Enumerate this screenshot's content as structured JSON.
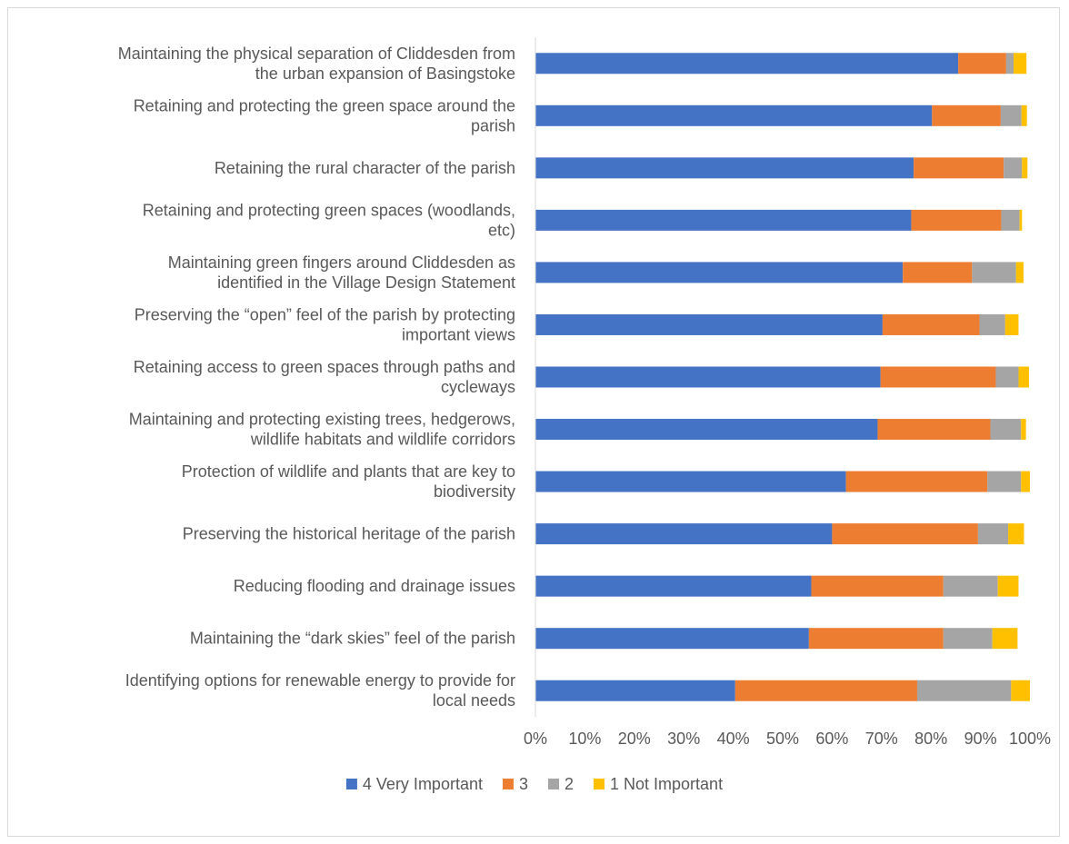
{
  "chart_data": {
    "type": "bar",
    "orientation": "horizontal",
    "stacked": "percent",
    "title": "",
    "xlabel": "",
    "ylabel": "",
    "xlim": [
      0,
      100
    ],
    "x_ticks": [
      "0%",
      "10%",
      "20%",
      "30%",
      "40%",
      "50%",
      "60%",
      "70%",
      "80%",
      "90%",
      "100%"
    ],
    "grid": "vertical axis line only",
    "legend_position": "bottom",
    "categories": [
      [
        "Maintaining the physical separation of Cliddesden from",
        "the urban expansion of Basingstoke"
      ],
      [
        "Retaining and protecting the green space around the",
        "parish"
      ],
      [
        "Retaining the rural character of the parish"
      ],
      [
        "Retaining and protecting green spaces (woodlands,",
        "etc)"
      ],
      [
        "Maintaining green fingers around Cliddesden as",
        "identified in the Village Design Statement"
      ],
      [
        "Preserving the “open” feel of the parish by protecting",
        "important views"
      ],
      [
        "Retaining access to green spaces through paths and",
        "cycleways"
      ],
      [
        "Maintaining and protecting existing trees, hedgerows,",
        "wildlife habitats and wildlife corridors"
      ],
      [
        "Protection of wildlife and plants that are key to",
        "biodiversity"
      ],
      [
        "Preserving the historical heritage of the parish"
      ],
      [
        "Reducing flooding and drainage issues"
      ],
      [
        "Maintaining the “dark skies” feel of the parish"
      ],
      [
        "Identifying options for renewable energy to provide for",
        "local needs"
      ]
    ],
    "series": [
      {
        "name": "4 Very Important",
        "color": "#4472c4",
        "values": [
          85.5,
          80.2,
          76.5,
          76.0,
          74.3,
          70.2,
          69.8,
          69.2,
          62.8,
          60.0,
          55.8,
          55.3,
          40.4
        ]
      },
      {
        "name": "3",
        "color": "#ed7d31",
        "values": [
          9.7,
          13.9,
          18.2,
          18.2,
          14.0,
          19.6,
          23.3,
          22.8,
          28.6,
          29.5,
          26.7,
          27.2,
          36.8
        ]
      },
      {
        "name": "2",
        "color": "#a5a5a5",
        "values": [
          1.5,
          4.2,
          3.7,
          3.7,
          8.9,
          5.2,
          4.6,
          6.2,
          6.8,
          6.1,
          11.0,
          9.9,
          19.0
        ]
      },
      {
        "name": "1 Not Important",
        "color": "#ffc000",
        "values": [
          2.6,
          1.1,
          1.1,
          0.5,
          1.5,
          2.7,
          2.1,
          1.0,
          1.8,
          3.2,
          4.2,
          5.1,
          3.8
        ]
      }
    ]
  }
}
